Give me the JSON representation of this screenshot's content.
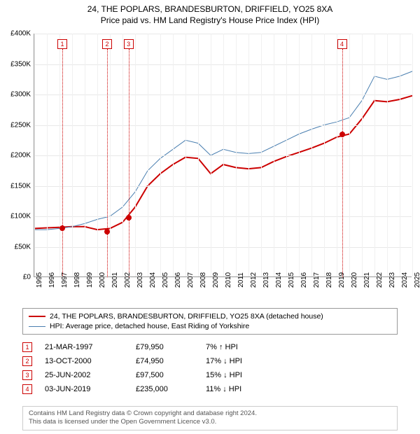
{
  "title_line1": "24, THE POPLARS, BRANDESBURTON, DRIFFIELD, YO25 8XA",
  "title_line2": "Price paid vs. HM Land Registry's House Price Index (HPI)",
  "chart": {
    "type": "line",
    "background_color": "#ffffff",
    "grid_color": "#e8e8e8",
    "axis_color": "#999999",
    "x_years": [
      1995,
      1996,
      1997,
      1998,
      1999,
      2000,
      2001,
      2002,
      2003,
      2004,
      2005,
      2006,
      2007,
      2008,
      2009,
      2010,
      2011,
      2012,
      2013,
      2014,
      2015,
      2016,
      2017,
      2018,
      2019,
      2020,
      2021,
      2022,
      2023,
      2024,
      2025
    ],
    "y_min": 0,
    "y_max": 400000,
    "y_step": 50000,
    "y_ticks": [
      "£0",
      "£50K",
      "£100K",
      "£150K",
      "£200K",
      "£250K",
      "£300K",
      "£350K",
      "£400K"
    ],
    "series": [
      {
        "name": "property",
        "color": "#cc0000",
        "width": 2,
        "points": [
          [
            1995,
            80000
          ],
          [
            1996,
            81000
          ],
          [
            1997,
            82000
          ],
          [
            1998,
            83000
          ],
          [
            1999,
            83000
          ],
          [
            2000,
            78000
          ],
          [
            2001,
            80000
          ],
          [
            2002,
            90000
          ],
          [
            2003,
            115000
          ],
          [
            2004,
            150000
          ],
          [
            2005,
            170000
          ],
          [
            2006,
            185000
          ],
          [
            2007,
            197000
          ],
          [
            2008,
            195000
          ],
          [
            2009,
            170000
          ],
          [
            2010,
            185000
          ],
          [
            2011,
            180000
          ],
          [
            2012,
            178000
          ],
          [
            2013,
            180000
          ],
          [
            2014,
            190000
          ],
          [
            2015,
            198000
          ],
          [
            2016,
            205000
          ],
          [
            2017,
            212000
          ],
          [
            2018,
            220000
          ],
          [
            2019,
            230000
          ],
          [
            2020,
            235000
          ],
          [
            2021,
            260000
          ],
          [
            2022,
            290000
          ],
          [
            2023,
            288000
          ],
          [
            2024,
            292000
          ],
          [
            2025,
            298000
          ]
        ]
      },
      {
        "name": "hpi",
        "color": "#4a7fb0",
        "width": 1,
        "points": [
          [
            1995,
            78000
          ],
          [
            1996,
            78000
          ],
          [
            1997,
            80000
          ],
          [
            1998,
            83000
          ],
          [
            1999,
            88000
          ],
          [
            2000,
            95000
          ],
          [
            2001,
            100000
          ],
          [
            2002,
            115000
          ],
          [
            2003,
            140000
          ],
          [
            2004,
            175000
          ],
          [
            2005,
            195000
          ],
          [
            2006,
            210000
          ],
          [
            2007,
            225000
          ],
          [
            2008,
            220000
          ],
          [
            2009,
            200000
          ],
          [
            2010,
            210000
          ],
          [
            2011,
            205000
          ],
          [
            2012,
            203000
          ],
          [
            2013,
            205000
          ],
          [
            2014,
            215000
          ],
          [
            2015,
            225000
          ],
          [
            2016,
            235000
          ],
          [
            2017,
            243000
          ],
          [
            2018,
            250000
          ],
          [
            2019,
            255000
          ],
          [
            2020,
            262000
          ],
          [
            2021,
            290000
          ],
          [
            2022,
            330000
          ],
          [
            2023,
            325000
          ],
          [
            2024,
            330000
          ],
          [
            2025,
            338000
          ]
        ]
      }
    ],
    "markers": [
      {
        "n": "1",
        "year": 1997.22,
        "price": 79950
      },
      {
        "n": "2",
        "year": 2000.78,
        "price": 74950
      },
      {
        "n": "3",
        "year": 2002.48,
        "price": 97500
      },
      {
        "n": "4",
        "year": 2019.42,
        "price": 235000
      }
    ]
  },
  "legend": {
    "items": [
      {
        "color": "#cc0000",
        "width": 2,
        "label": "24, THE POPLARS, BRANDESBURTON, DRIFFIELD, YO25 8XA (detached house)"
      },
      {
        "color": "#4a7fb0",
        "width": 1,
        "label": "HPI: Average price, detached house, East Riding of Yorkshire"
      }
    ]
  },
  "events": [
    {
      "n": "1",
      "date": "21-MAR-1997",
      "price": "£79,950",
      "delta": "7% ↑ HPI"
    },
    {
      "n": "2",
      "date": "13-OCT-2000",
      "price": "£74,950",
      "delta": "17% ↓ HPI"
    },
    {
      "n": "3",
      "date": "25-JUN-2002",
      "price": "£97,500",
      "delta": "15% ↓ HPI"
    },
    {
      "n": "4",
      "date": "03-JUN-2019",
      "price": "£235,000",
      "delta": "11% ↓ HPI"
    }
  ],
  "footer_line1": "Contains HM Land Registry data © Crown copyright and database right 2024.",
  "footer_line2": "This data is licensed under the Open Government Licence v3.0."
}
